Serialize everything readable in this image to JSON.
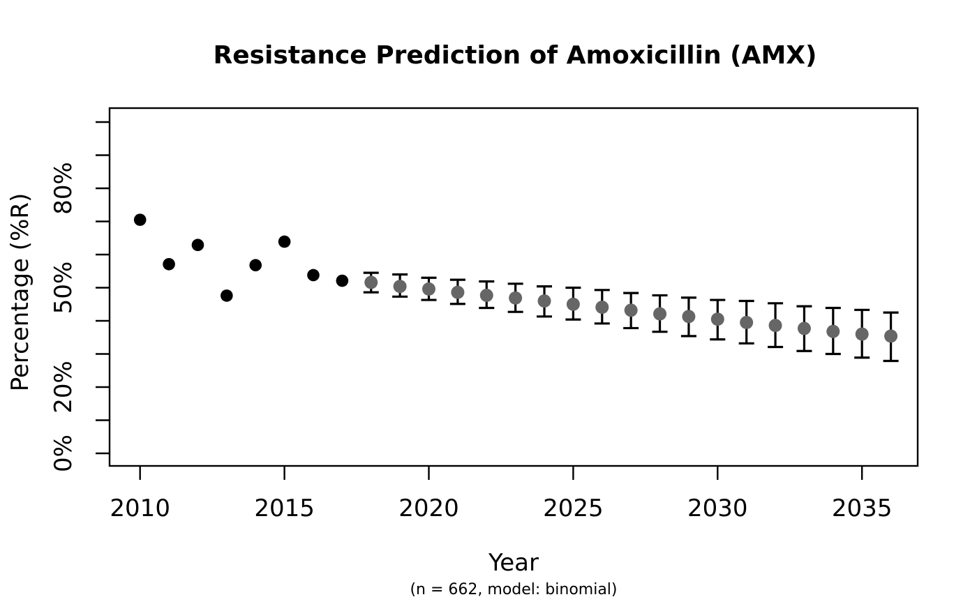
{
  "chart_data": {
    "type": "scatter",
    "title": "Resistance Prediction of Amoxicillin (AMX)",
    "xlabel": "Year",
    "ylabel": "Percentage (%R)",
    "subtitle": "(n = 662, model: binomial)",
    "legend": false,
    "grid": false,
    "background_color": "#ffffff",
    "axis_color": "#000000",
    "xlim": [
      2009,
      2037
    ],
    "ylim_percent": [
      0,
      100
    ],
    "x_ticks": [
      2010,
      2015,
      2020,
      2025,
      2030,
      2035
    ],
    "y_ticks": {
      "min": 0,
      "max": 100,
      "step": 10,
      "labeled": [
        {
          "value": 0,
          "label": "0%"
        },
        {
          "value": 20,
          "label": "20%"
        },
        {
          "value": 50,
          "label": "50%"
        },
        {
          "value": 80,
          "label": "80%"
        }
      ]
    },
    "series": [
      {
        "name": "observed",
        "style": "points",
        "color": "#000000",
        "points": [
          {
            "year": 2010,
            "value": 70.5
          },
          {
            "year": 2011,
            "value": 57.1
          },
          {
            "year": 2012,
            "value": 62.9
          },
          {
            "year": 2013,
            "value": 47.6
          },
          {
            "year": 2014,
            "value": 56.8
          },
          {
            "year": 2015,
            "value": 63.9
          },
          {
            "year": 2016,
            "value": 53.8
          },
          {
            "year": 2017,
            "value": 52.1
          }
        ]
      },
      {
        "name": "predicted",
        "style": "points-with-error-bars",
        "color": "#666666",
        "error_bar_color": "#000000",
        "points": [
          {
            "year": 2018,
            "value": 51.6,
            "lower": 48.6,
            "upper": 54.5
          },
          {
            "year": 2019,
            "value": 50.4,
            "lower": 47.3,
            "upper": 54.0
          },
          {
            "year": 2020,
            "value": 49.6,
            "lower": 46.3,
            "upper": 53.0
          },
          {
            "year": 2021,
            "value": 48.6,
            "lower": 45.1,
            "upper": 52.4
          },
          {
            "year": 2022,
            "value": 47.7,
            "lower": 43.9,
            "upper": 51.9
          },
          {
            "year": 2023,
            "value": 46.9,
            "lower": 42.7,
            "upper": 51.2
          },
          {
            "year": 2024,
            "value": 46.0,
            "lower": 41.3,
            "upper": 50.4
          },
          {
            "year": 2025,
            "value": 45.0,
            "lower": 40.4,
            "upper": 50.0
          },
          {
            "year": 2026,
            "value": 44.1,
            "lower": 39.2,
            "upper": 49.3
          },
          {
            "year": 2027,
            "value": 43.2,
            "lower": 37.8,
            "upper": 48.4
          },
          {
            "year": 2028,
            "value": 42.1,
            "lower": 36.7,
            "upper": 47.7
          },
          {
            "year": 2029,
            "value": 41.3,
            "lower": 35.4,
            "upper": 47.0
          },
          {
            "year": 2030,
            "value": 40.5,
            "lower": 34.4,
            "upper": 46.3
          },
          {
            "year": 2031,
            "value": 39.5,
            "lower": 33.2,
            "upper": 46.0
          },
          {
            "year": 2032,
            "value": 38.6,
            "lower": 32.1,
            "upper": 45.3
          },
          {
            "year": 2033,
            "value": 37.7,
            "lower": 30.9,
            "upper": 44.4
          },
          {
            "year": 2034,
            "value": 36.8,
            "lower": 30.0,
            "upper": 43.9
          },
          {
            "year": 2035,
            "value": 36.0,
            "lower": 28.9,
            "upper": 43.3
          },
          {
            "year": 2036,
            "value": 35.4,
            "lower": 27.9,
            "upper": 42.5
          }
        ]
      }
    ]
  }
}
